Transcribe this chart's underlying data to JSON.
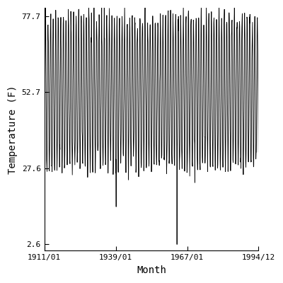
{
  "title": "",
  "xlabel": "Month",
  "ylabel": "Temperature (F)",
  "start_year": 1911,
  "start_month": 1,
  "end_year": 1994,
  "end_month": 12,
  "yticks": [
    2.6,
    27.6,
    52.7,
    77.7
  ],
  "xtick_labels": [
    "1911/01",
    "1939/01",
    "1967/01",
    "1994/12"
  ],
  "xtick_positions_years": [
    1911,
    1939,
    1967,
    1994
  ],
  "xtick_positions_months": [
    1,
    1,
    1,
    12
  ],
  "line_color": "#000000",
  "line_width": 0.6,
  "background_color": "#ffffff",
  "base_temp": 52.65,
  "seasonal_amplitude": 24.5,
  "noise_std": 2.5,
  "ylim_min": 0.5,
  "ylim_max": 80.5,
  "low_outlier_val": 2.6,
  "low_outlier_index": 624,
  "second_low_val": 15.0,
  "second_low_index": 338,
  "fontsize_ticks": 8,
  "fontsize_labels": 10
}
